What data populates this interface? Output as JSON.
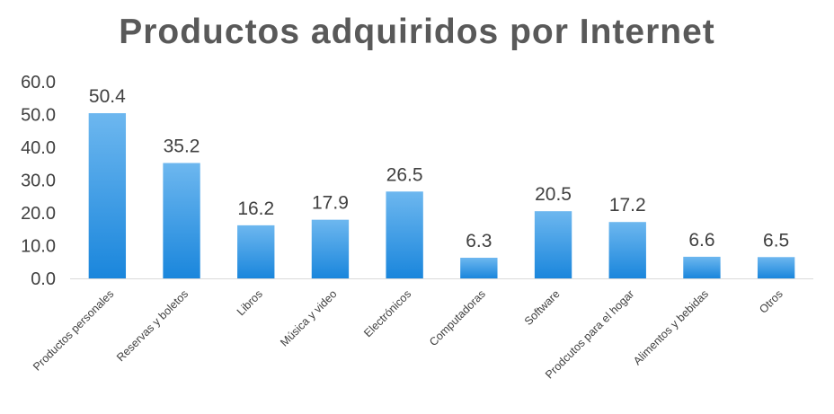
{
  "chart_data": {
    "type": "bar",
    "title": "Productos adquiridos por Internet",
    "xlabel": "",
    "ylabel": "",
    "categories": [
      "Productos personales",
      "Reservas y boletos",
      "Libros",
      "Música y video",
      "Electrónicos",
      "Computadoras",
      "Software",
      "Prodcutos para el hogar",
      "Alimentos y bebidas",
      "Otros"
    ],
    "values": [
      50.4,
      35.2,
      16.2,
      17.9,
      26.5,
      6.3,
      20.5,
      17.2,
      6.6,
      6.5
    ],
    "data_labels": [
      "50.4",
      "35.2",
      "16.2",
      "17.9",
      "26.5",
      "6.3",
      "20.5",
      "17.2",
      "6.6",
      "6.5"
    ],
    "ylim": [
      0,
      60
    ],
    "yticks": [
      "0.0",
      "10.0",
      "20.0",
      "30.0",
      "40.0",
      "50.0",
      "60.0"
    ],
    "ytick_values": [
      0,
      10,
      20,
      30,
      40,
      50,
      60
    ],
    "grid": false,
    "legend": "none",
    "colors": {
      "bar_light": "#6db7ef",
      "bar_dark": "#1a86dc",
      "axis": "#d9d9d9",
      "title": "#595959"
    }
  }
}
